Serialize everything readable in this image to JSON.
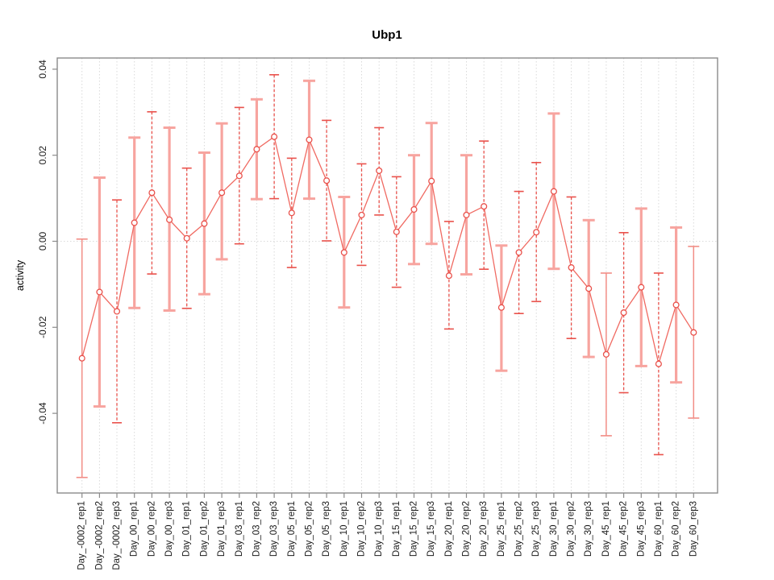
{
  "chart_data": {
    "type": "line",
    "title": "Ubp1",
    "ylabel": "activity",
    "xlabel": "",
    "ylim": [
      -0.0585,
      0.0427
    ],
    "y_ticks": [
      0.04,
      0.02,
      0,
      -0.02,
      -0.04
    ],
    "y_tick_labels": [
      "0.04",
      "0.02",
      "0.00",
      "-0.02",
      "-0.04"
    ],
    "grid": "vertical dotted gridline at every category; dotted horizontal line at y=0",
    "legend": "none",
    "colors": {
      "series_line": "#f06a62",
      "marker_stroke": "#e9514b",
      "bar_thick": "#f7a49f",
      "bar_dash": "#e9514b",
      "bar_thin": "#f28d86",
      "grid": "#d9d9d9",
      "axis": "#8a8a8a",
      "text": "#1a1a1a"
    },
    "categories": [
      "Day_-0002_rep1",
      "Day_-0002_rep2",
      "Day_-0002_rep3",
      "Day_00_rep1",
      "Day_00_rep2",
      "Day_00_rep3",
      "Day_01_rep1",
      "Day_01_rep2",
      "Day_01_rep3",
      "Day_03_rep1",
      "Day_03_rep2",
      "Day_03_rep3",
      "Day_05_rep1",
      "Day_05_rep2",
      "Day_05_rep3",
      "Day_10_rep1",
      "Day_10_rep2",
      "Day_10_rep3",
      "Day_15_rep1",
      "Day_15_rep2",
      "Day_15_rep3",
      "Day_20_rep1",
      "Day_20_rep2",
      "Day_20_rep3",
      "Day_25_rep1",
      "Day_25_rep2",
      "Day_25_rep3",
      "Day_30_rep1",
      "Day_30_rep2",
      "Day_30_rep3",
      "Day_45_rep1",
      "Day_45_rep2",
      "Day_45_rep3",
      "Day_60_rep1",
      "Day_60_rep2",
      "Day_60_rep3"
    ],
    "points": [
      {
        "label": "Day_-0002_rep1",
        "y": -0.0272,
        "lo": -0.0549,
        "hi": 0.0005,
        "style": "thin"
      },
      {
        "label": "Day_-0002_rep2",
        "y": -0.0118,
        "lo": -0.0384,
        "hi": 0.0148,
        "style": "thick"
      },
      {
        "label": "Day_-0002_rep3",
        "y": -0.0163,
        "lo": -0.0422,
        "hi": 0.0096,
        "style": "dash"
      },
      {
        "label": "Day_00_rep1",
        "y": 0.0043,
        "lo": -0.0155,
        "hi": 0.0241,
        "style": "thick"
      },
      {
        "label": "Day_00_rep2",
        "y": 0.0113,
        "lo": -0.0076,
        "hi": 0.0301,
        "style": "dash"
      },
      {
        "label": "Day_00_rep3",
        "y": 0.005,
        "lo": -0.0161,
        "hi": 0.0264,
        "style": "thick"
      },
      {
        "label": "Day_01_rep1",
        "y": 0.0007,
        "lo": -0.0156,
        "hi": 0.017,
        "style": "dash"
      },
      {
        "label": "Day_01_rep2",
        "y": 0.0041,
        "lo": -0.0123,
        "hi": 0.0206,
        "style": "thick"
      },
      {
        "label": "Day_01_rep3",
        "y": 0.0113,
        "lo": -0.0042,
        "hi": 0.0274,
        "style": "thick"
      },
      {
        "label": "Day_03_rep1",
        "y": 0.0152,
        "lo": -0.0006,
        "hi": 0.0311,
        "style": "dash"
      },
      {
        "label": "Day_03_rep2",
        "y": 0.0214,
        "lo": 0.0098,
        "hi": 0.033,
        "style": "thick"
      },
      {
        "label": "Day_03_rep3",
        "y": 0.0243,
        "lo": 0.0099,
        "hi": 0.0387,
        "style": "dash"
      },
      {
        "label": "Day_05_rep1",
        "y": 0.0066,
        "lo": -0.0061,
        "hi": 0.0193,
        "style": "dash"
      },
      {
        "label": "Day_05_rep2",
        "y": 0.0236,
        "lo": 0.0099,
        "hi": 0.0373,
        "style": "thick"
      },
      {
        "label": "Day_05_rep3",
        "y": 0.0141,
        "lo": 0.0001,
        "hi": 0.0281,
        "style": "dash"
      },
      {
        "label": "Day_10_rep1",
        "y": -0.0026,
        "lo": -0.0154,
        "hi": 0.0103,
        "style": "thick"
      },
      {
        "label": "Day_10_rep2",
        "y": 0.0061,
        "lo": -0.0056,
        "hi": 0.018,
        "style": "dash"
      },
      {
        "label": "Day_10_rep3",
        "y": 0.0164,
        "lo": 0.0061,
        "hi": 0.0264,
        "style": "dash"
      },
      {
        "label": "Day_15_rep1",
        "y": 0.0022,
        "lo": -0.0107,
        "hi": 0.015,
        "style": "dash"
      },
      {
        "label": "Day_15_rep2",
        "y": 0.0074,
        "lo": -0.0053,
        "hi": 0.02,
        "style": "thick"
      },
      {
        "label": "Day_15_rep3",
        "y": 0.014,
        "lo": -0.0006,
        "hi": 0.0275,
        "style": "thick"
      },
      {
        "label": "Day_20_rep1",
        "y": -0.008,
        "lo": -0.0204,
        "hi": 0.0046,
        "style": "dash"
      },
      {
        "label": "Day_20_rep2",
        "y": 0.0061,
        "lo": -0.0077,
        "hi": 0.02,
        "style": "thick"
      },
      {
        "label": "Day_20_rep3",
        "y": 0.0081,
        "lo": -0.0065,
        "hi": 0.0233,
        "style": "dash"
      },
      {
        "label": "Day_25_rep1",
        "y": -0.0154,
        "lo": -0.0301,
        "hi": -0.001,
        "style": "thick"
      },
      {
        "label": "Day_25_rep2",
        "y": -0.0026,
        "lo": -0.0168,
        "hi": 0.0116,
        "style": "dash"
      },
      {
        "label": "Day_25_rep3",
        "y": 0.0021,
        "lo": -0.014,
        "hi": 0.0183,
        "style": "dash"
      },
      {
        "label": "Day_30_rep1",
        "y": 0.0116,
        "lo": -0.0064,
        "hi": 0.0297,
        "style": "thick"
      },
      {
        "label": "Day_30_rep2",
        "y": -0.0061,
        "lo": -0.0226,
        "hi": 0.0103,
        "style": "dash"
      },
      {
        "label": "Day_30_rep3",
        "y": -0.011,
        "lo": -0.0269,
        "hi": 0.0049,
        "style": "thick"
      },
      {
        "label": "Day_45_rep1",
        "y": -0.0263,
        "lo": -0.0452,
        "hi": -0.0074,
        "style": "thin"
      },
      {
        "label": "Day_45_rep2",
        "y": -0.0166,
        "lo": -0.0352,
        "hi": 0.002,
        "style": "dash"
      },
      {
        "label": "Day_45_rep3",
        "y": -0.0107,
        "lo": -0.029,
        "hi": 0.0076,
        "style": "thick"
      },
      {
        "label": "Day_60_rep1",
        "y": -0.0285,
        "lo": -0.0496,
        "hi": -0.0074,
        "style": "dash"
      },
      {
        "label": "Day_60_rep2",
        "y": -0.0148,
        "lo": -0.0328,
        "hi": 0.0032,
        "style": "thick"
      },
      {
        "label": "Day_60_rep3",
        "y": -0.0212,
        "lo": -0.0411,
        "hi": -0.0012,
        "style": "thin"
      }
    ]
  }
}
